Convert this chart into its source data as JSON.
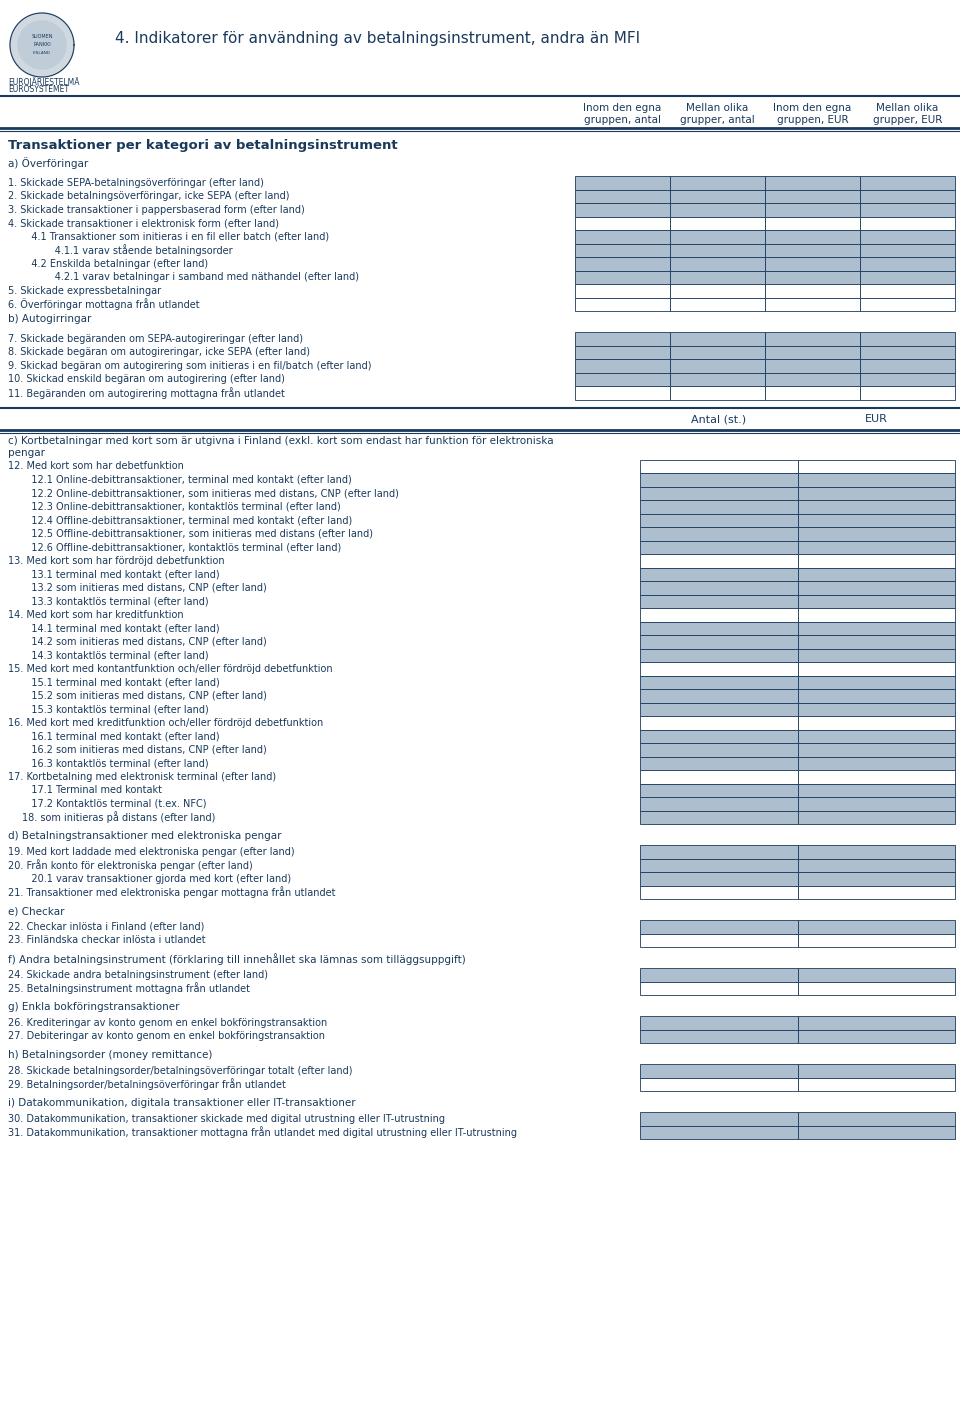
{
  "title": "4. Indikatorer för användning av betalningsinstrument, andra än MFI",
  "section_title": "Transaktioner per kategori av betalningsinstrument",
  "bg_color": "#ffffff",
  "text_color": "#1a3a5c",
  "cell_fill_light": "#adbfce",
  "cell_fill_white": "#ffffff",
  "border_color": "#1a3a5c",
  "line_color": "#1a3a5c",
  "col4_headers": [
    [
      "Inom den egna",
      "gruppen, antal"
    ],
    [
      "Mellan olika",
      "grupper, antal"
    ],
    [
      "Inom den egna",
      "gruppen, EUR"
    ],
    [
      "Mellan olika",
      "grupper, EUR"
    ]
  ],
  "col2_headers": [
    "Antal (st.)",
    "EUR"
  ],
  "section_a_label": "a) Överföringar",
  "section_b_label": "b) Autogirringar",
  "section_c_label": "c) Kortbetalningar med kort som är utgivna i Finland (exkl. kort som endast har funktion för elektroniska\npengar",
  "section_d_label": "d) Betalningstransaktioner med elektroniska pengar",
  "section_e_label": "e) Checkar",
  "section_f_label": "f) Andra betalningsinstrument (förklaring till innehållet ska lämnas som tilläggsuppgift)",
  "section_g_label": "g) Enkla bokföringstransaktioner",
  "section_h_label": "h) Betalningsorder (money remittance)",
  "section_i_label": "i) Datakommunikation, digitala transaktioner eller IT-transaktioner",
  "rows_a": [
    {
      "label": "1. Skickade SEPA-betalningsöverföringar (efter land)",
      "indent": 0,
      "ncols": 4,
      "fill": "light"
    },
    {
      "label": "2. Skickade betalningsöverföringar, icke SEPA (efter land)",
      "indent": 0,
      "ncols": 4,
      "fill": "light"
    },
    {
      "label": "3. Skickade transaktioner i pappersbaserad form (efter land)",
      "indent": 0,
      "ncols": 4,
      "fill": "light"
    },
    {
      "label": "4. Skickade transaktioner i elektronisk form (efter land)",
      "indent": 0,
      "ncols": 4,
      "fill": "white"
    },
    {
      "label": "   4.1 Transaktioner som initieras i en fil eller batch (efter land)",
      "indent": 1,
      "ncols": 4,
      "fill": "light"
    },
    {
      "label": "      4.1.1 varav stående betalningsorder",
      "indent": 2,
      "ncols": 4,
      "fill": "light"
    },
    {
      "label": "   4.2 Enskilda betalningar (efter land)",
      "indent": 1,
      "ncols": 4,
      "fill": "light"
    },
    {
      "label": "      4.2.1 varav betalningar i samband med näthandel (efter land)",
      "indent": 2,
      "ncols": 4,
      "fill": "light"
    },
    {
      "label": "5. Skickade expressbetalningar",
      "indent": 0,
      "ncols": 4,
      "fill": "white"
    },
    {
      "label": "6. Överföringar mottagna från utlandet",
      "indent": 0,
      "ncols": 4,
      "fill": "white"
    }
  ],
  "rows_b": [
    {
      "label": "7. Skickade begäranden om SEPA-autogireringar (efter land)",
      "indent": 0,
      "ncols": 4,
      "fill": "light"
    },
    {
      "label": "8. Skickade begäran om autogireringar, icke SEPA (efter land)",
      "indent": 0,
      "ncols": 4,
      "fill": "light"
    },
    {
      "label": "9. Skickad begäran om autogirering som initieras i en fil/batch (efter land)",
      "indent": 0,
      "ncols": 4,
      "fill": "light"
    },
    {
      "label": "10. Skickad enskild begäran om autogirering (efter land)",
      "indent": 0,
      "ncols": 4,
      "fill": "light"
    },
    {
      "label": "11. Begäranden om autogirering mottagna från utlandet",
      "indent": 0,
      "ncols": 4,
      "fill": "white"
    }
  ],
  "rows_c": [
    {
      "label": "12. Med kort som har debetfunktion",
      "indent": 0,
      "ncols": 2,
      "fill": "white"
    },
    {
      "label": "   12.1 Online-debittransaktioner, terminal med kontakt (efter land)",
      "indent": 1,
      "ncols": 2,
      "fill": "light"
    },
    {
      "label": "   12.2 Online-debittransaktioner, som initieras med distans, CNP (efter land)",
      "indent": 1,
      "ncols": 2,
      "fill": "light"
    },
    {
      "label": "   12.3 Online-debittransaktioner, kontaktlös terminal (efter land)",
      "indent": 1,
      "ncols": 2,
      "fill": "light"
    },
    {
      "label": "   12.4 Offline-debittransaktioner, terminal med kontakt (efter land)",
      "indent": 1,
      "ncols": 2,
      "fill": "light"
    },
    {
      "label": "   12.5 Offline-debittransaktioner, som initieras med distans (efter land)",
      "indent": 1,
      "ncols": 2,
      "fill": "light"
    },
    {
      "label": "   12.6 Offline-debittransaktioner, kontaktlös terminal (efter land)",
      "indent": 1,
      "ncols": 2,
      "fill": "light"
    },
    {
      "label": "13. Med kort som har fördröjd debetfunktion",
      "indent": 0,
      "ncols": 2,
      "fill": "white"
    },
    {
      "label": "   13.1 terminal med kontakt (efter land)",
      "indent": 1,
      "ncols": 2,
      "fill": "light"
    },
    {
      "label": "   13.2 som initieras med distans, CNP (efter land)",
      "indent": 1,
      "ncols": 2,
      "fill": "light"
    },
    {
      "label": "   13.3 kontaktlös terminal (efter land)",
      "indent": 1,
      "ncols": 2,
      "fill": "light"
    },
    {
      "label": "14. Med kort som har kreditfunktion",
      "indent": 0,
      "ncols": 2,
      "fill": "white"
    },
    {
      "label": "   14.1 terminal med kontakt (efter land)",
      "indent": 1,
      "ncols": 2,
      "fill": "light"
    },
    {
      "label": "   14.2 som initieras med distans, CNP (efter land)",
      "indent": 1,
      "ncols": 2,
      "fill": "light"
    },
    {
      "label": "   14.3 kontaktlös terminal (efter land)",
      "indent": 1,
      "ncols": 2,
      "fill": "light"
    },
    {
      "label": "15. Med kort med kontantfunktion och/eller fördröjd debetfunktion",
      "indent": 0,
      "ncols": 2,
      "fill": "white"
    },
    {
      "label": "   15.1 terminal med kontakt (efter land)",
      "indent": 1,
      "ncols": 2,
      "fill": "light"
    },
    {
      "label": "   15.2 som initieras med distans, CNP (efter land)",
      "indent": 1,
      "ncols": 2,
      "fill": "light"
    },
    {
      "label": "   15.3 kontaktlös terminal (efter land)",
      "indent": 1,
      "ncols": 2,
      "fill": "light"
    },
    {
      "label": "16. Med kort med kreditfunktion och/eller fördröjd debetfunktion",
      "indent": 0,
      "ncols": 2,
      "fill": "white"
    },
    {
      "label": "   16.1 terminal med kontakt (efter land)",
      "indent": 1,
      "ncols": 2,
      "fill": "light"
    },
    {
      "label": "   16.2 som initieras med distans, CNP (efter land)",
      "indent": 1,
      "ncols": 2,
      "fill": "light"
    },
    {
      "label": "   16.3 kontaktlös terminal (efter land)",
      "indent": 1,
      "ncols": 2,
      "fill": "light"
    },
    {
      "label": "17. Kortbetalning med elektronisk terminal (efter land)",
      "indent": 0,
      "ncols": 2,
      "fill": "white"
    },
    {
      "label": "   17.1 Terminal med kontakt",
      "indent": 1,
      "ncols": 2,
      "fill": "light"
    },
    {
      "label": "   17.2 Kontaktlös terminal (t.ex. NFC)",
      "indent": 1,
      "ncols": 2,
      "fill": "light"
    },
    {
      "label": "18. som initieras på distans (efter land)",
      "indent": 1,
      "ncols": 2,
      "fill": "light"
    }
  ],
  "rows_d": [
    {
      "label": "19. Med kort laddade med elektroniska pengar (efter land)",
      "indent": 0,
      "ncols": 2,
      "fill": "light"
    },
    {
      "label": "20. Från konto för elektroniska pengar (efter land)",
      "indent": 0,
      "ncols": 2,
      "fill": "light"
    },
    {
      "label": "   20.1 varav transaktioner gjorda med kort (efter land)",
      "indent": 1,
      "ncols": 2,
      "fill": "light"
    },
    {
      "label": "21. Transaktioner med elektroniska pengar mottagna från utlandet",
      "indent": 0,
      "ncols": 2,
      "fill": "white"
    }
  ],
  "rows_e": [
    {
      "label": "22. Checkar inlösta i Finland (efter land)",
      "indent": 0,
      "ncols": 2,
      "fill": "light"
    },
    {
      "label": "23. Finländska checkar inlösta i utlandet",
      "indent": 0,
      "ncols": 2,
      "fill": "white"
    }
  ],
  "rows_f": [
    {
      "label": "24. Skickade andra betalningsinstrument (efter land)",
      "indent": 0,
      "ncols": 2,
      "fill": "light"
    },
    {
      "label": "25. Betalningsinstrument mottagna från utlandet",
      "indent": 0,
      "ncols": 2,
      "fill": "white"
    }
  ],
  "rows_g": [
    {
      "label": "26. Krediteringar av konto genom en enkel bokföringstransaktion",
      "indent": 0,
      "ncols": 2,
      "fill": "light"
    },
    {
      "label": "27. Debiteringar av konto genom en enkel bokföringstransaktion",
      "indent": 0,
      "ncols": 2,
      "fill": "light"
    }
  ],
  "rows_h": [
    {
      "label": "28. Skickade betalningsorder/betalningsöverföringar totalt (efter land)",
      "indent": 0,
      "ncols": 2,
      "fill": "light"
    },
    {
      "label": "29. Betalningsorder/betalningsöverföringar från utlandet",
      "indent": 0,
      "ncols": 2,
      "fill": "white"
    }
  ],
  "rows_i": [
    {
      "label": "30. Datakommunikation, transaktioner skickade med digital utrustning eller IT-utrustning",
      "indent": 0,
      "ncols": 2,
      "fill": "light"
    },
    {
      "label": "31. Datakommunikation, transaktioner mottagna från utlandet med digital utrustning eller IT-utrustning",
      "indent": 0,
      "ncols": 2,
      "fill": "light"
    }
  ]
}
